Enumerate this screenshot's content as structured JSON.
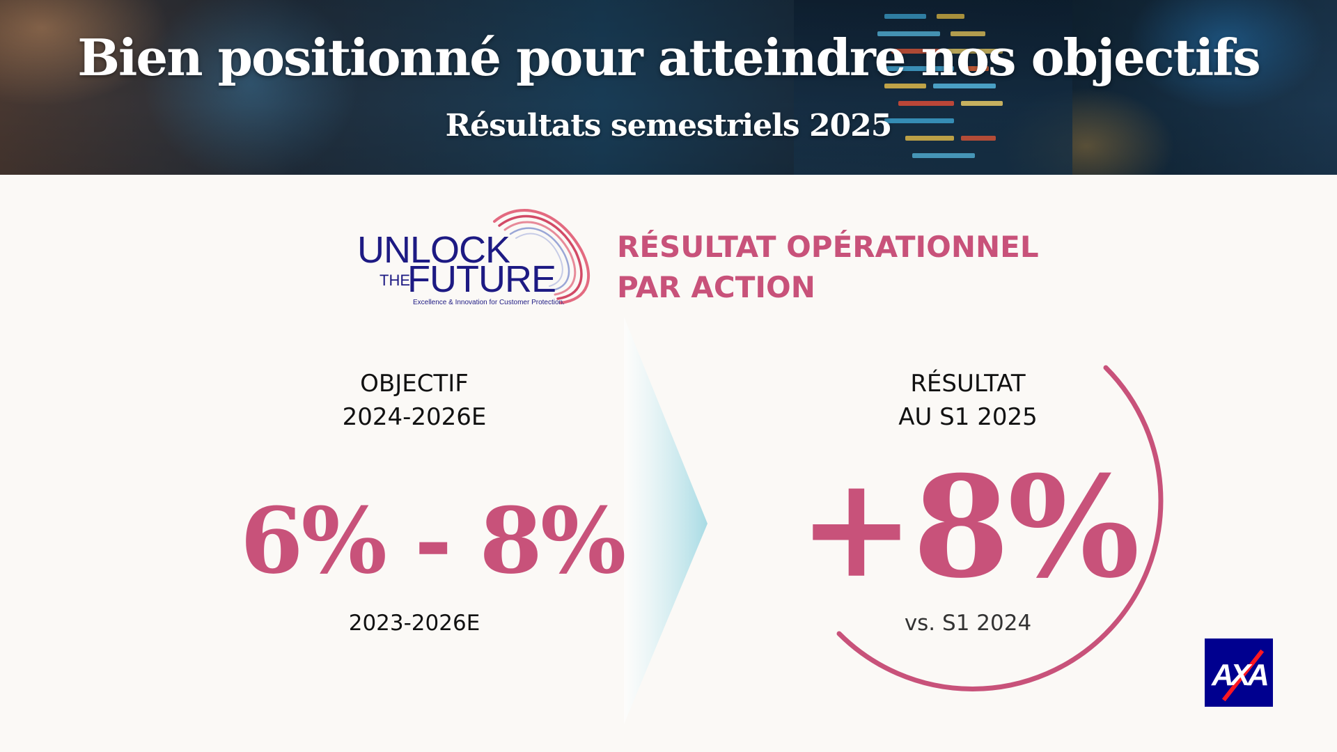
{
  "header": {
    "title": "Bien positionné pour atteindre nos objectifs",
    "subtitle": "Résultats semestriels 2025"
  },
  "logo": {
    "line1": "UNLOCK",
    "line2_small": "THE",
    "line2": "FUTURE",
    "tagline": "Excellence & Innovation for Customer Protection."
  },
  "metric": {
    "line1": "RÉSULTAT OPÉRATIONNEL",
    "line2": "PAR ACTION"
  },
  "target": {
    "label_line1": "OBJECTIF",
    "label_line2": "2024-2026E",
    "value": "6% - 8%",
    "footnote": "2023-2026E"
  },
  "result": {
    "label_line1": "RÉSULTAT",
    "label_line2": "AU S1 2025",
    "value": "+8%",
    "footnote": "vs. S1 2024"
  },
  "brand": {
    "name": "AXA",
    "accent_color": "#c8527a",
    "navy": "#1d1a83",
    "axa_blue": "#00008f",
    "axa_red": "#ff1721"
  }
}
